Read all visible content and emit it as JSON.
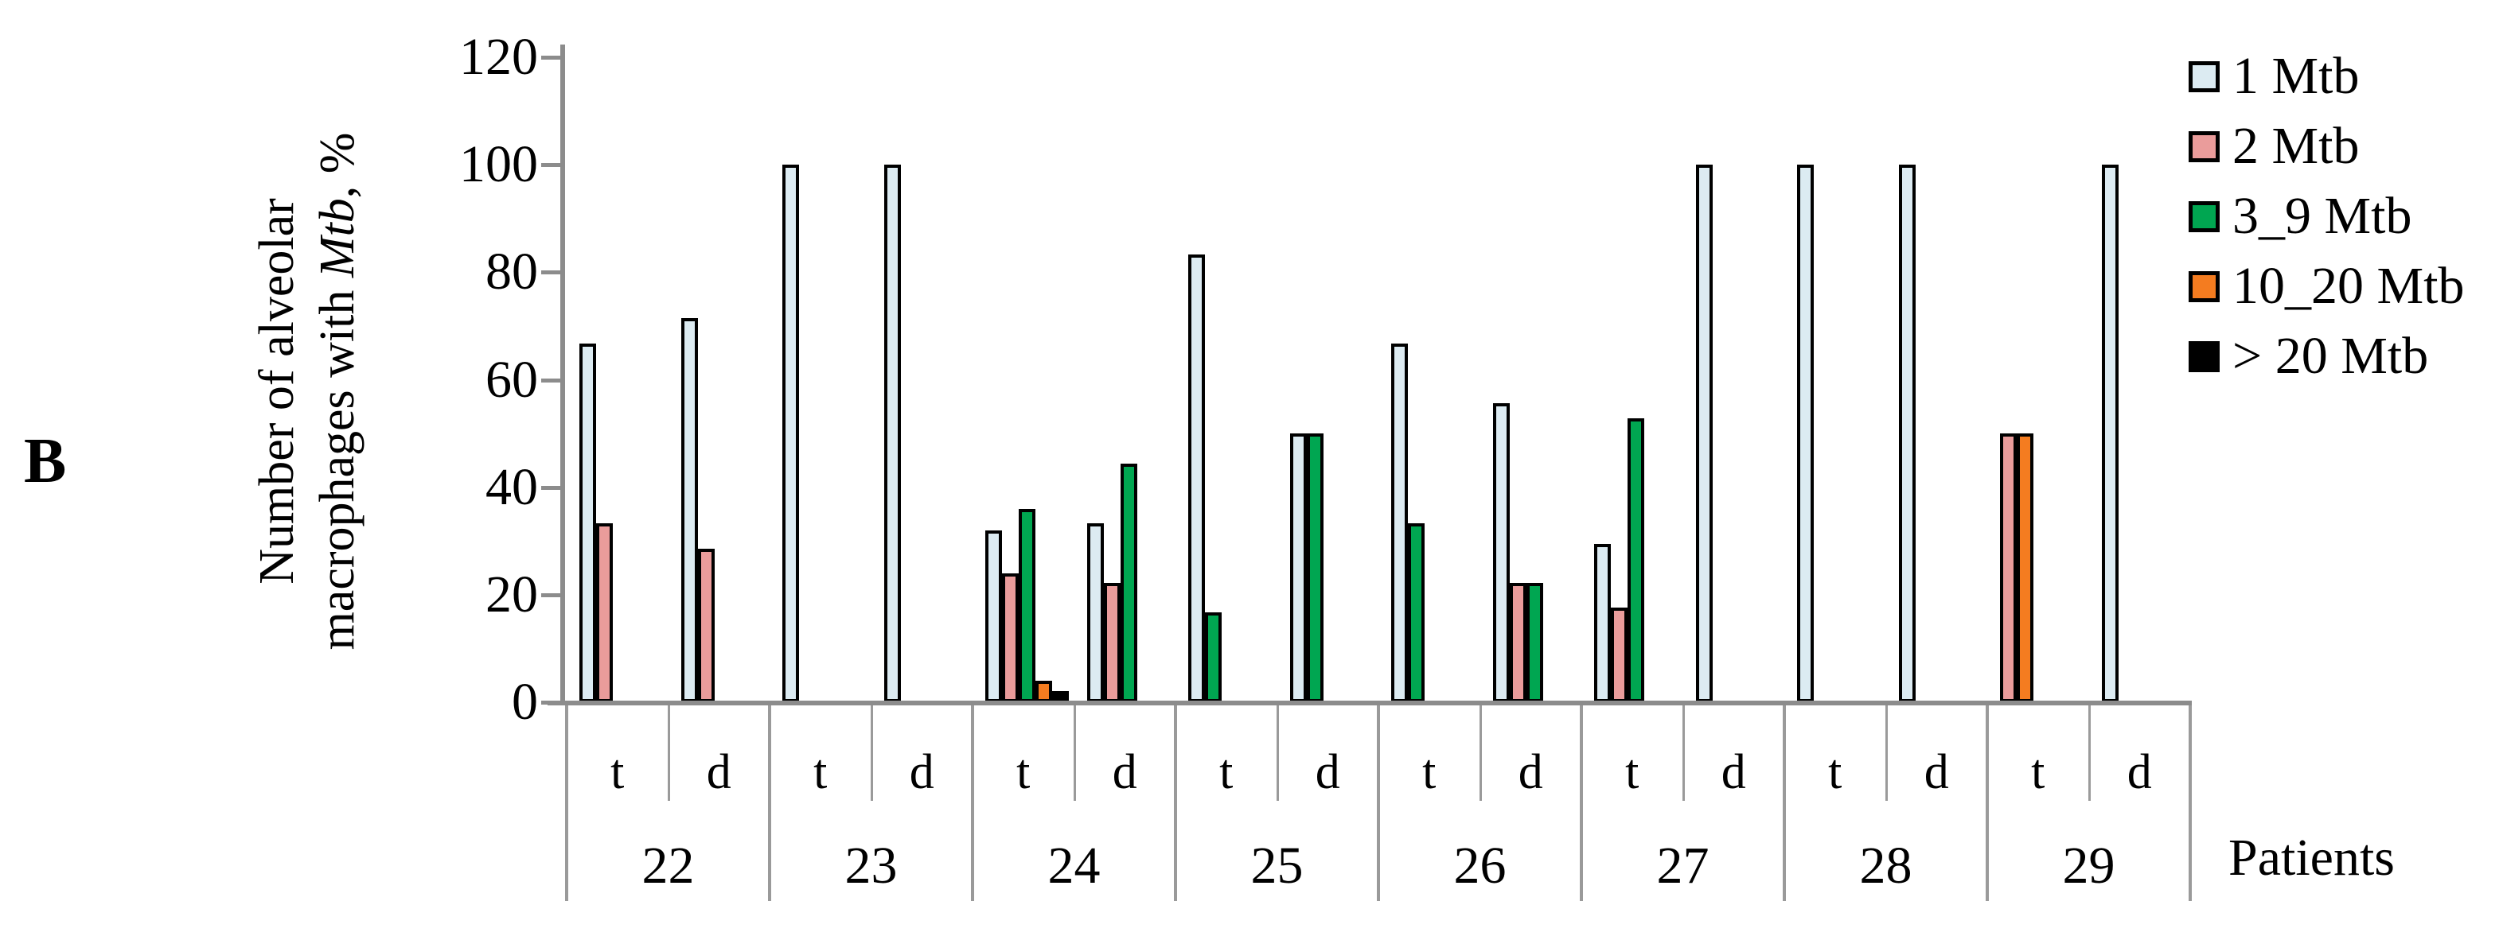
{
  "panel_label": "B",
  "y_axis": {
    "title_line1": "Number of alveolar",
    "title_line2_pre": "macrophages with ",
    "title_line2_italic": "Mtb",
    "title_line2_post": ", %",
    "ticks": [
      120,
      100,
      80,
      60,
      40,
      20,
      0
    ]
  },
  "x_axis": {
    "label": "Patients",
    "sublabels": [
      "t",
      "d"
    ]
  },
  "legend": [
    {
      "label": "1 Mtb",
      "color": "#dcebf2"
    },
    {
      "label": "2 Mtb",
      "color": "#ea9c9b"
    },
    {
      "label": "3_9 Mtb",
      "color": "#00a651"
    },
    {
      "label": "10_20 Mtb",
      "color": "#f47c20"
    },
    {
      "label": "> 20 Mtb",
      "color": "#000000"
    }
  ],
  "chart_data": {
    "type": "bar",
    "title": "",
    "xlabel": "Patients",
    "ylabel": "Number of alveolar macrophages with Mtb, %",
    "ylim": [
      0,
      120
    ],
    "yticks": [
      0,
      20,
      40,
      60,
      80,
      100,
      120
    ],
    "grid": false,
    "legend_position": "top-right",
    "series_names": [
      "1 Mtb",
      "2 Mtb",
      "3_9 Mtb",
      "10_20 Mtb",
      "> 20 Mtb"
    ],
    "groups": [
      {
        "patient": "22",
        "samples": [
          {
            "label": "t",
            "values": {
              "1 Mtb": 66.7,
              "2 Mtb": 33.3
            }
          },
          {
            "label": "d",
            "values": {
              "1 Mtb": 71.4,
              "2 Mtb": 28.6
            }
          }
        ]
      },
      {
        "patient": "23",
        "samples": [
          {
            "label": "t",
            "values": {
              "1 Mtb": 100
            }
          },
          {
            "label": "d",
            "values": {
              "1 Mtb": 100
            }
          }
        ]
      },
      {
        "patient": "24",
        "samples": [
          {
            "label": "t",
            "values": {
              "1 Mtb": 32,
              "2 Mtb": 24,
              "3_9 Mtb": 36,
              "10_20 Mtb": 4,
              "> 20 Mtb": 2
            }
          },
          {
            "label": "d",
            "values": {
              "1 Mtb": 33.3,
              "2 Mtb": 22.2,
              "3_9 Mtb": 44.4
            }
          }
        ]
      },
      {
        "patient": "25",
        "samples": [
          {
            "label": "t",
            "values": {
              "1 Mtb": 83.3,
              "3_9 Mtb": 16.7
            }
          },
          {
            "label": "d",
            "values": {
              "1 Mtb": 50,
              "3_9 Mtb": 50
            }
          }
        ]
      },
      {
        "patient": "26",
        "samples": [
          {
            "label": "t",
            "values": {
              "1 Mtb": 66.7,
              "3_9 Mtb": 33.3
            }
          },
          {
            "label": "d",
            "values": {
              "1 Mtb": 55.6,
              "2 Mtb": 22.2,
              "3_9 Mtb": 22.2
            }
          }
        ]
      },
      {
        "patient": "27",
        "samples": [
          {
            "label": "t",
            "values": {
              "1 Mtb": 29.4,
              "2 Mtb": 17.6,
              "3_9 Mtb": 52.9
            }
          },
          {
            "label": "d",
            "values": {
              "1 Mtb": 100
            }
          }
        ]
      },
      {
        "patient": "28",
        "samples": [
          {
            "label": "t",
            "values": {
              "1 Mtb": 100
            }
          },
          {
            "label": "d",
            "values": {
              "1 Mtb": 100
            }
          }
        ]
      },
      {
        "patient": "29",
        "samples": [
          {
            "label": "t",
            "values": {
              "2 Mtb": 50,
              "10_20 Mtb": 50
            }
          },
          {
            "label": "d",
            "values": {
              "1 Mtb": 100
            }
          }
        ]
      }
    ]
  }
}
